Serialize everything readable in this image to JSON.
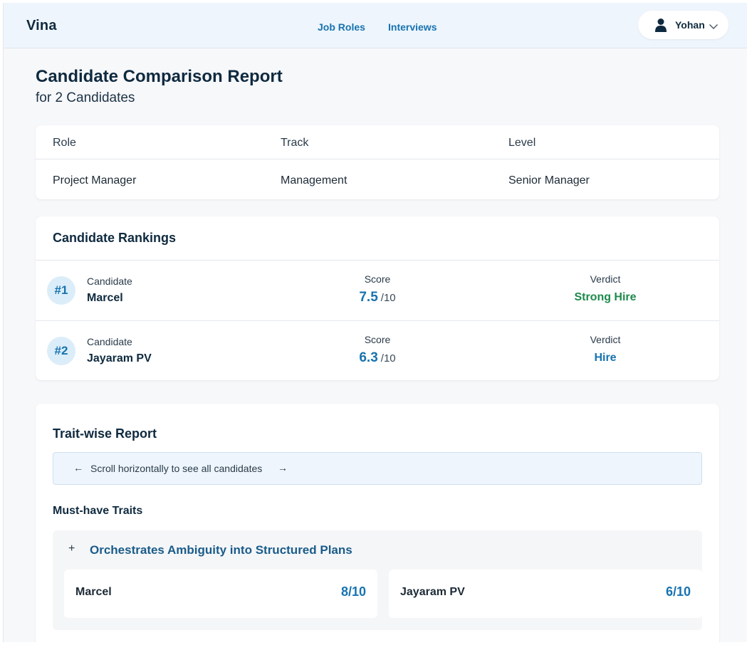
{
  "header": {
    "brand": "Vina",
    "nav": [
      {
        "label": "Job Roles"
      },
      {
        "label": "Interviews"
      }
    ],
    "user": {
      "name": "Yohan",
      "icon": "person-icon"
    }
  },
  "page": {
    "title": "Candidate Comparison Report",
    "subtitle": "for 2 Candidates"
  },
  "role_info": {
    "headers": [
      "Role",
      "Track",
      "Level"
    ],
    "values": [
      "Project Manager",
      "Management",
      "Senior Manager"
    ]
  },
  "rankings": {
    "title": "Candidate Rankings",
    "rows": [
      {
        "rank": "#1",
        "candidate_label": "Candidate",
        "name": "Marcel",
        "score_label": "Score",
        "score": "7.5",
        "score_max": "/10",
        "verdict_label": "Verdict",
        "verdict": "Strong Hire",
        "verdict_color": "#1e8a4c"
      },
      {
        "rank": "#2",
        "candidate_label": "Candidate",
        "name": "Jayaram PV",
        "score_label": "Score",
        "score": "6.3",
        "score_max": "/10",
        "verdict_label": "Verdict",
        "verdict": "Hire",
        "verdict_color": "#1773b0"
      }
    ]
  },
  "traits": {
    "title": "Trait-wise Report",
    "scroll_hint": "Scroll horizontally to see all candidates",
    "left_arrow": "←",
    "right_arrow": "→",
    "section_title": "Must-have Traits",
    "items": [
      {
        "expand_symbol": "+",
        "name": "Orchestrates Ambiguity into Structured Plans",
        "scores": [
          {
            "candidate": "Marcel",
            "score": "8/10"
          },
          {
            "candidate": "Jayaram PV",
            "score": "6/10"
          }
        ]
      }
    ]
  },
  "colors": {
    "accent": "#1773b0",
    "strong_hire": "#1e8a4c",
    "header_bg": "#eef5fc"
  }
}
